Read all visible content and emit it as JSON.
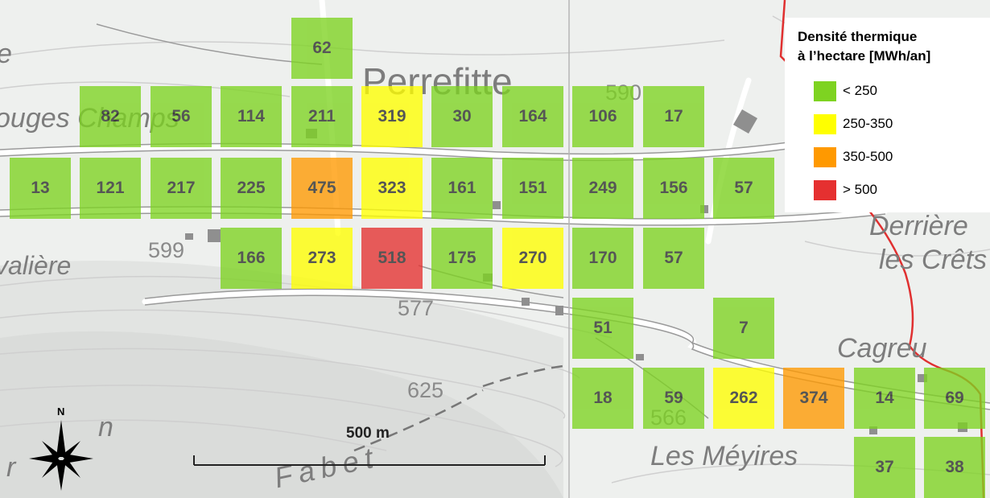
{
  "places": {
    "perrefitte": "Perrefitte",
    "rouges_champs": "ouges Champs",
    "derriere": "Derrière",
    "les_crets": "les Crêts",
    "cagreu": "Cagreu",
    "les_meyires": "Les Méyires",
    "fabet": "Fabet",
    "valiere": "valière",
    "edge_e": "e",
    "edge_n": "n",
    "edge_r": "r"
  },
  "elevations": {
    "e599": "599",
    "e577": "577",
    "e625": "625",
    "e566": "566",
    "e590": "590"
  },
  "scale_label": "500 m",
  "north_label": "N",
  "legend": {
    "title_line1": "Densité thermique",
    "title_line2": "à l’hectare [MWh/an]",
    "items": [
      {
        "label": "< 250",
        "color": "#7ed321"
      },
      {
        "label": "250-350",
        "color": "#ffff00"
      },
      {
        "label": "350-500",
        "color": "#ff9900"
      },
      {
        "label": "> 500",
        "color": "#e53030"
      }
    ]
  },
  "cells": [
    {
      "col": 4,
      "row": 0,
      "value": "62"
    },
    {
      "col": 1,
      "row": 1,
      "value": "82"
    },
    {
      "col": 2,
      "row": 1,
      "value": "56"
    },
    {
      "col": 3,
      "row": 1,
      "value": "114"
    },
    {
      "col": 4,
      "row": 1,
      "value": "211"
    },
    {
      "col": 5,
      "row": 1,
      "value": "319"
    },
    {
      "col": 6,
      "row": 1,
      "value": "30"
    },
    {
      "col": 7,
      "row": 1,
      "value": "164"
    },
    {
      "col": 8,
      "row": 1,
      "value": "106"
    },
    {
      "col": 9,
      "row": 1,
      "value": "17"
    },
    {
      "col": 0,
      "row": 2,
      "value": "13"
    },
    {
      "col": 1,
      "row": 2,
      "value": "121"
    },
    {
      "col": 2,
      "row": 2,
      "value": "217"
    },
    {
      "col": 3,
      "row": 2,
      "value": "225"
    },
    {
      "col": 4,
      "row": 2,
      "value": "475"
    },
    {
      "col": 5,
      "row": 2,
      "value": "323"
    },
    {
      "col": 6,
      "row": 2,
      "value": "161"
    },
    {
      "col": 7,
      "row": 2,
      "value": "151"
    },
    {
      "col": 8,
      "row": 2,
      "value": "249"
    },
    {
      "col": 9,
      "row": 2,
      "value": "156"
    },
    {
      "col": 10,
      "row": 2,
      "value": "57"
    },
    {
      "col": 3,
      "row": 3,
      "value": "166"
    },
    {
      "col": 4,
      "row": 3,
      "value": "273"
    },
    {
      "col": 5,
      "row": 3,
      "value": "518"
    },
    {
      "col": 6,
      "row": 3,
      "value": "175"
    },
    {
      "col": 7,
      "row": 3,
      "value": "270"
    },
    {
      "col": 8,
      "row": 3,
      "value": "170"
    },
    {
      "col": 9,
      "row": 3,
      "value": "57"
    },
    {
      "col": 8,
      "row": 4,
      "value": "51"
    },
    {
      "col": 10,
      "row": 4,
      "value": "7"
    },
    {
      "col": 8,
      "row": 5,
      "value": "18"
    },
    {
      "col": 9,
      "row": 5,
      "value": "59"
    },
    {
      "col": 10,
      "row": 5,
      "value": "262"
    },
    {
      "col": 11,
      "row": 5,
      "value": "374"
    },
    {
      "col": 12,
      "row": 5,
      "value": "14"
    },
    {
      "col": 13,
      "row": 5,
      "value": "69"
    },
    {
      "col": 12,
      "row": 6,
      "value": "37"
    },
    {
      "col": 13,
      "row": 6,
      "value": "38"
    }
  ]
}
